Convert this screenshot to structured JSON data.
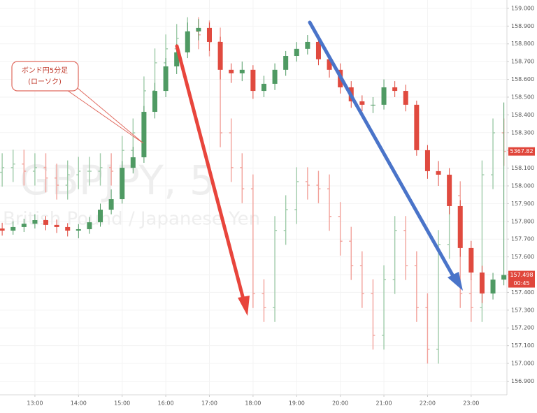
{
  "chart_data": {
    "type": "candlestick",
    "watermark": [
      "GBPJPY, 5",
      "British Pound / Japanese Yen"
    ],
    "annotations": [
      "ボンド円5分足",
      "(ローソク)"
    ],
    "x": [
      12.25,
      12.5,
      12.75,
      13,
      13.25,
      13.5,
      13.75,
      14,
      14.25,
      14.5,
      14.75,
      15,
      15.25,
      15.5,
      15.75,
      16,
      16.25,
      16.5,
      16.75,
      17,
      17.25,
      17.5,
      17.75,
      18,
      18.25,
      18.5,
      18.75,
      19,
      19.25,
      19.5,
      19.75,
      20,
      20.25,
      20.5,
      20.75,
      21,
      21.25,
      21.5,
      21.75,
      22,
      22.25,
      22.5,
      22.75,
      23,
      23.25,
      23.5,
      23.75
    ],
    "xlim": [
      12.2,
      23.82
    ],
    "xticks": [
      {
        "value": 13,
        "label": "13:00"
      },
      {
        "value": 14,
        "label": "14:00"
      },
      {
        "value": 15,
        "label": "15:00"
      },
      {
        "value": 16,
        "label": "16:00"
      },
      {
        "value": 17,
        "label": "17:00"
      },
      {
        "value": 18,
        "label": "18:00"
      },
      {
        "value": 19,
        "label": "19:00"
      },
      {
        "value": 20,
        "label": "20:00"
      },
      {
        "value": 21,
        "label": "21:00"
      },
      {
        "value": 22,
        "label": "22:00"
      },
      {
        "value": 23,
        "label": "23:00"
      }
    ],
    "ylim": [
      156.823,
      159.047
    ],
    "yticks": [
      {
        "value": 159,
        "label": "159.000"
      },
      {
        "value": 158.9,
        "label": "158.900"
      },
      {
        "value": 158.8,
        "label": "158.800"
      },
      {
        "value": 158.7,
        "label": "158.700"
      },
      {
        "value": 158.6,
        "label": "158.600"
      },
      {
        "value": 158.5,
        "label": "158.500"
      },
      {
        "value": 158.4,
        "label": "158.400"
      },
      {
        "value": 158.3,
        "label": "158.300"
      },
      {
        "value": 158.2,
        "label": "158.200"
      },
      {
        "value": 158.1,
        "label": "158.100"
      },
      {
        "value": 158,
        "label": "158.000"
      },
      {
        "value": 157.9,
        "label": "157.900"
      },
      {
        "value": 157.8,
        "label": "157.800"
      },
      {
        "value": 157.7,
        "label": "157.700"
      },
      {
        "value": 157.6,
        "label": "157.600"
      },
      {
        "value": 157.5,
        "label": "157.500"
      },
      {
        "value": 157.4,
        "label": "157.400"
      },
      {
        "value": 157.3,
        "label": "157.300"
      },
      {
        "value": 157.2,
        "label": "157.200"
      },
      {
        "value": 157.1,
        "label": "157.100"
      },
      {
        "value": 157,
        "label": "157.000"
      },
      {
        "value": 156.9,
        "label": "156.900"
      }
    ],
    "y2lim": [
      5300,
      5410
    ],
    "grid": true,
    "last_price": {
      "value": 157.498,
      "label": "157.498"
    },
    "countdown": "00:45",
    "y2_last_price": {
      "value": 5367.82,
      "label": "5367.82"
    },
    "series": [
      {
        "axis": "y2",
        "style": "ohlc",
        "up_color": "#9fcba9",
        "down_color": "#f2a29b",
        "open": [
          5362.0,
          5363.3,
          5364.3,
          5362.3,
          5363.3,
          5360.4,
          5358.4,
          5361.3,
          5362.3,
          5362.3,
          5363.3,
          5362.3,
          5368.1,
          5373.0,
          5384.7,
          5392.5,
          5396.4,
          5399.3,
          5401.2,
          5400.3,
          5398.3,
          5373.0,
          5363.3,
          5357.4,
          5328.2,
          5324.3,
          5345.8,
          5351.6,
          5359.4,
          5358.4,
          5357.4,
          5349.7,
          5342.8,
          5336.0,
          5328.2,
          5316.6,
          5332.1,
          5345.8,
          5336.0,
          5324.3,
          5312.7,
          5341.9,
          5355.5,
          5328.2,
          5324.3,
          5361.3,
          5373.0
        ],
        "high": [
          5367.3,
          5368.3,
          5368.3,
          5367.3,
          5367.3,
          5364.4,
          5365.3,
          5366.3,
          5366.3,
          5367.3,
          5367.3,
          5372.1,
          5377.0,
          5388.7,
          5396.5,
          5400.4,
          5403.3,
          5405.2,
          5405.2,
          5404.3,
          5402.3,
          5377.0,
          5367.3,
          5361.4,
          5332.2,
          5349.8,
          5355.6,
          5363.4,
          5363.4,
          5362.4,
          5361.4,
          5353.7,
          5346.8,
          5340.0,
          5332.2,
          5336.1,
          5349.8,
          5349.8,
          5340.0,
          5328.3,
          5345.9,
          5359.5,
          5359.5,
          5332.2,
          5365.3,
          5377.0,
          5377.0
        ],
        "low": [
          5358.0,
          5359.3,
          5358.3,
          5358.3,
          5356.4,
          5354.4,
          5354.4,
          5357.3,
          5358.3,
          5358.3,
          5358.3,
          5358.3,
          5364.1,
          5369.0,
          5380.7,
          5388.5,
          5392.4,
          5395.3,
          5396.3,
          5394.3,
          5369.0,
          5359.3,
          5353.4,
          5324.2,
          5320.3,
          5320.3,
          5341.8,
          5347.6,
          5354.4,
          5353.4,
          5345.7,
          5338.8,
          5332.0,
          5324.2,
          5312.6,
          5312.6,
          5328.1,
          5332.0,
          5320.3,
          5308.7,
          5308.7,
          5337.9,
          5324.2,
          5320.3,
          5320.3,
          5357.3,
          5363.8
        ],
        "close": [
          5363.3,
          5364.3,
          5362.3,
          5363.3,
          5360.4,
          5358.4,
          5361.3,
          5362.3,
          5362.3,
          5363.3,
          5362.3,
          5368.1,
          5373.0,
          5384.7,
          5392.5,
          5396.4,
          5399.3,
          5401.2,
          5400.3,
          5398.3,
          5373.0,
          5363.3,
          5357.4,
          5328.2,
          5324.3,
          5345.8,
          5351.6,
          5359.4,
          5358.4,
          5357.4,
          5349.7,
          5342.8,
          5336.0,
          5328.2,
          5316.6,
          5332.1,
          5345.8,
          5336.0,
          5324.3,
          5312.7,
          5341.9,
          5355.5,
          5328.2,
          5324.3,
          5361.3,
          5373.0,
          5367.82
        ]
      },
      {
        "style": "candle",
        "up_color": "#4f9a63",
        "down_color": "#e04a3f",
        "open": [
          157.76,
          157.748,
          157.768,
          157.787,
          157.807,
          157.78,
          157.768,
          157.748,
          157.756,
          157.795,
          157.866,
          157.925,
          158.102,
          158.161,
          158.417,
          158.535,
          158.673,
          158.752,
          158.87,
          158.89,
          158.811,
          158.654,
          158.634,
          158.654,
          158.535,
          158.575,
          158.654,
          158.732,
          158.772,
          158.811,
          158.713,
          158.654,
          158.555,
          158.476,
          158.457,
          158.457,
          158.555,
          158.535,
          158.457,
          158.201,
          158.083,
          158.063,
          157.886,
          157.65,
          157.512,
          157.394,
          157.472
        ],
        "high": [
          157.792,
          157.8,
          157.815,
          157.84,
          157.83,
          157.81,
          157.79,
          157.785,
          157.825,
          157.9,
          157.98,
          158.14,
          158.22,
          158.45,
          158.58,
          158.72,
          158.8,
          158.92,
          158.94,
          158.92,
          158.84,
          158.69,
          158.7,
          158.68,
          158.62,
          158.69,
          158.76,
          158.81,
          158.85,
          158.84,
          158.74,
          158.69,
          158.59,
          158.51,
          158.5,
          158.6,
          158.59,
          158.57,
          158.48,
          158.23,
          158.14,
          158.1,
          157.92,
          157.69,
          157.55,
          157.51,
          158.47
        ],
        "low": [
          157.72,
          157.725,
          157.74,
          157.76,
          157.75,
          157.735,
          157.715,
          157.705,
          157.73,
          157.77,
          157.84,
          157.9,
          158.07,
          158.13,
          158.38,
          158.5,
          158.63,
          158.72,
          158.82,
          158.76,
          158.6,
          158.58,
          158.59,
          158.49,
          158.5,
          158.54,
          158.62,
          158.7,
          158.74,
          158.68,
          158.61,
          158.52,
          158.44,
          158.42,
          158.41,
          158.43,
          158.5,
          158.42,
          158.17,
          158.04,
          158.0,
          157.84,
          157.6,
          157.47,
          157.34,
          157.36,
          157.44
        ],
        "close": [
          157.748,
          157.768,
          157.787,
          157.807,
          157.78,
          157.768,
          157.748,
          157.756,
          157.795,
          157.866,
          157.925,
          158.102,
          158.161,
          158.417,
          158.535,
          158.673,
          158.752,
          158.87,
          158.89,
          158.811,
          158.654,
          158.634,
          158.654,
          158.535,
          158.575,
          158.654,
          158.732,
          158.772,
          158.811,
          158.713,
          158.654,
          158.555,
          158.476,
          158.457,
          158.457,
          158.555,
          158.535,
          158.457,
          158.201,
          158.083,
          158.063,
          157.886,
          157.65,
          157.512,
          157.394,
          157.472,
          157.498
        ]
      }
    ]
  }
}
